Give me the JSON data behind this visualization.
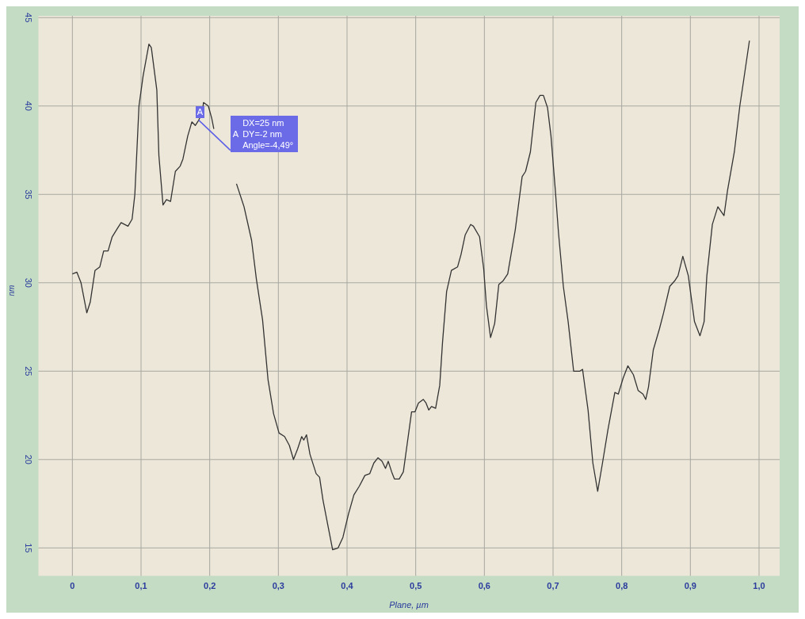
{
  "chart_data": {
    "type": "line",
    "xlabel": "Plane, µm",
    "ylabel": "nm",
    "x": [
      0,
      0.0066,
      0.0126,
      0.021,
      0.026,
      0.033,
      0.04,
      0.0456,
      0.052,
      0.058,
      0.066,
      0.071,
      0.081,
      0.087,
      0.091,
      0.097,
      0.103,
      0.1115,
      0.115,
      0.123,
      0.126,
      0.132,
      0.137,
      0.143,
      0.15,
      0.157,
      0.161,
      0.168,
      0.174,
      0.179,
      0.184,
      0.189,
      0.191,
      0.198,
      0.203,
      0.206,
      0.212,
      0.218,
      0.228,
      0.239,
      0.25,
      0.261,
      0.268,
      0.277,
      0.285,
      0.293,
      0.301,
      0.309,
      0.316,
      0.322,
      0.328,
      0.334,
      0.337,
      0.341,
      0.346,
      0.355,
      0.36,
      0.365,
      0.373,
      0.379,
      0.387,
      0.394,
      0.402,
      0.41,
      0.418,
      0.426,
      0.433,
      0.439,
      0.445,
      0.451,
      0.456,
      0.46,
      0.465,
      0.469,
      0.476,
      0.482,
      0.488,
      0.494,
      0.499,
      0.504,
      0.511,
      0.515,
      0.519,
      0.523,
      0.529,
      0.535,
      0.539,
      0.545,
      0.552,
      0.561,
      0.566,
      0.572,
      0.58,
      0.584,
      0.593,
      0.599,
      0.603,
      0.609,
      0.615,
      0.621,
      0.627,
      0.634,
      0.645,
      0.655,
      0.66,
      0.667,
      0.675,
      0.681,
      0.686,
      0.692,
      0.697,
      0.703,
      0.708,
      0.715,
      0.722,
      0.73,
      0.739,
      0.743,
      0.751,
      0.758,
      0.765,
      0.772,
      0.78,
      0.79,
      0.795,
      0.802,
      0.809,
      0.817,
      0.824,
      0.831,
      0.835,
      0.839,
      0.846,
      0.855,
      0.861,
      0.87,
      0.877,
      0.882,
      0.889,
      0.897,
      0.906,
      0.914,
      0.92,
      0.924,
      0.932,
      0.94,
      0.949,
      0.954,
      0.964,
      0.972,
      0.977,
      0.986
    ],
    "series": [
      {
        "color": "#333333",
        "values": [
          30.5,
          30.6,
          30.0,
          28.3,
          28.9,
          30.7,
          30.9,
          31.8,
          31.8,
          32.6,
          33.1,
          33.4,
          33.2,
          33.6,
          35.0,
          40.0,
          41.7,
          43.5,
          43.3,
          40.9,
          37.2,
          34.4,
          34.7,
          34.6,
          36.3,
          36.6,
          37.0,
          38.3,
          39.1,
          38.9,
          39.2,
          39.6,
          40.2,
          40.0,
          39.3,
          38.7,
          null,
          null,
          null,
          35.6,
          34.3,
          32.4,
          30.2,
          27.9,
          24.5,
          22.6,
          21.5,
          21.3,
          20.8,
          20.0,
          20.6,
          21.3,
          21.1,
          21.4,
          20.3,
          19.2,
          19.0,
          17.7,
          16.1,
          14.9,
          15.0,
          15.6,
          16.9,
          18.0,
          18.5,
          19.1,
          19.2,
          19.8,
          20.1,
          19.9,
          19.5,
          19.9,
          19.3,
          18.9,
          18.9,
          19.3,
          21.0,
          22.7,
          22.7,
          23.2,
          23.4,
          23.2,
          22.8,
          23.0,
          22.9,
          24.2,
          26.6,
          29.5,
          30.7,
          30.9,
          31.6,
          32.7,
          33.3,
          33.2,
          32.6,
          30.8,
          28.7,
          26.9,
          27.7,
          29.9,
          30.1,
          30.5,
          33.0,
          36.0,
          36.3,
          37.4,
          40.2,
          40.6,
          40.6,
          39.9,
          38.3,
          35.4,
          32.8,
          29.8,
          27.8,
          25.0,
          25.0,
          25.1,
          22.8,
          19.8,
          18.2,
          19.8,
          21.7,
          23.8,
          23.7,
          24.6,
          25.3,
          24.8,
          23.9,
          23.7,
          23.4,
          24.1,
          26.2,
          27.4,
          28.3,
          29.8,
          30.1,
          30.4,
          31.5,
          30.4,
          27.8,
          27.0,
          27.8,
          30.4,
          33.3,
          34.3,
          33.8,
          35.2,
          37.4,
          40.0,
          41.3,
          43.7
        ]
      }
    ],
    "xlim": [
      -0.05,
      1.03
    ],
    "xticks": [
      0,
      {
        "value": 0.1,
        "label": "0,1"
      },
      {
        "value": 0.2,
        "label": "0,2"
      },
      {
        "value": 0.3,
        "label": "0,3"
      },
      {
        "value": 0.4,
        "label": "0,4"
      },
      {
        "value": 0.5,
        "label": "0,5"
      },
      {
        "value": 0.6,
        "label": "0,6"
      },
      {
        "value": 0.7,
        "label": "0,7"
      },
      {
        "value": 0.8,
        "label": "0,8"
      },
      {
        "value": 0.9,
        "label": "0,9"
      },
      {
        "value": 1,
        "label": "1,0"
      }
    ],
    "ylim": [
      13.4,
      45.1
    ],
    "yticks": [
      15,
      20,
      25,
      30,
      35,
      40,
      45
    ],
    "grid": true,
    "marker": "none",
    "line_style": "solid",
    "annotations": [
      {
        "text": "A",
        "x": 0.184,
        "y": 39.2
      },
      "A",
      "DX=25 nm",
      "DY=-2 nm",
      "Angle=-4,49°"
    ]
  }
}
